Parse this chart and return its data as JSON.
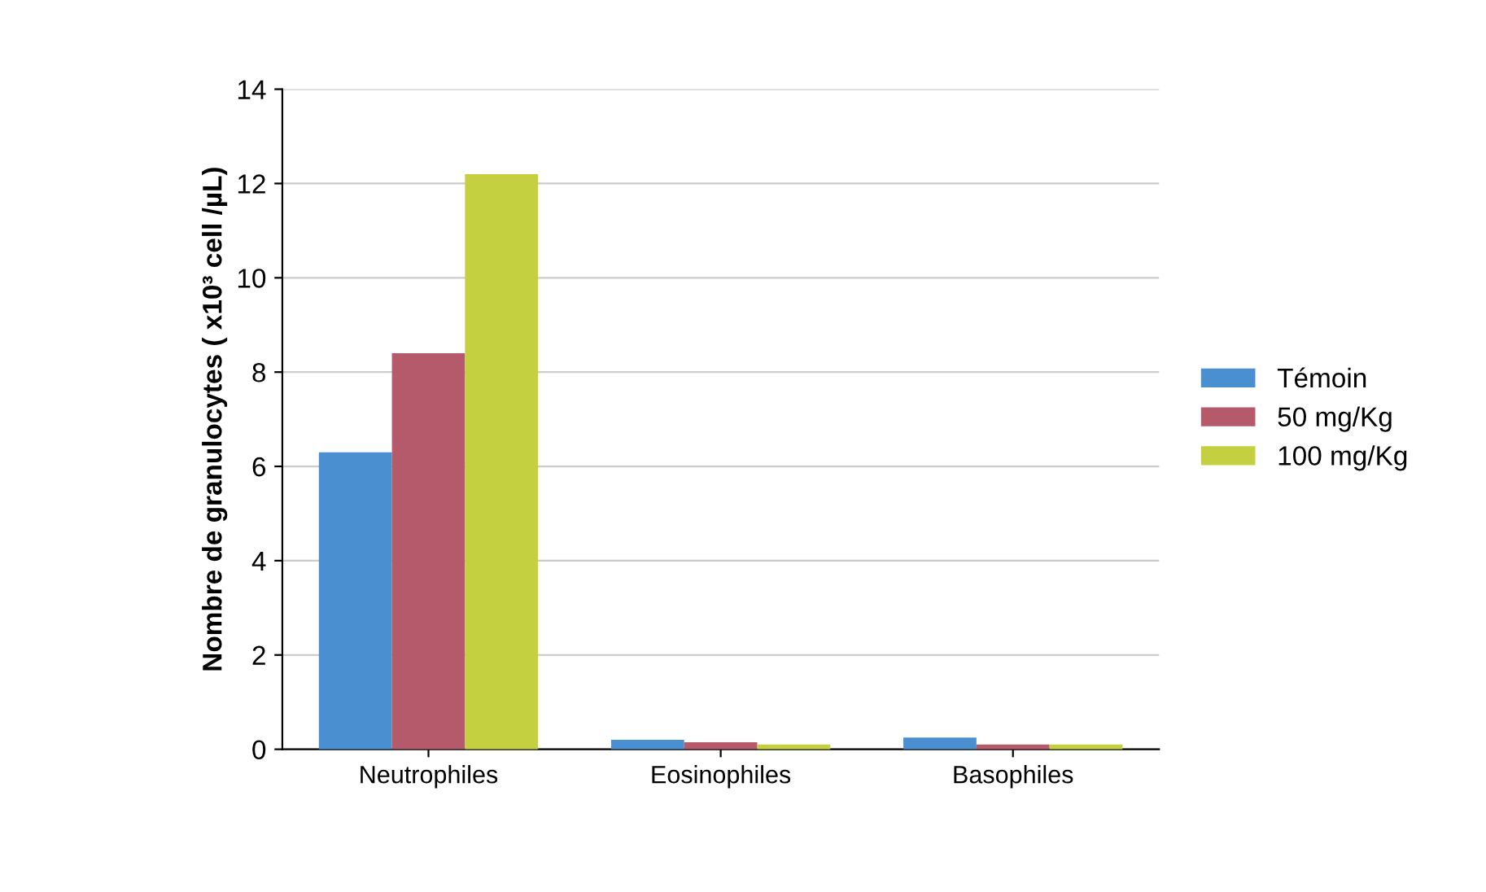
{
  "chart_data": {
    "type": "bar",
    "ylabel": "Nombre de granulocytes ( x10³ cell /µL)",
    "categories": [
      "Neutrophiles",
      "Eosinophiles",
      "Basophiles"
    ],
    "series": [
      {
        "name": "Témoin",
        "color": "#4a8fd0",
        "values": [
          6.3,
          0.2,
          0.25
        ]
      },
      {
        "name": "50 mg/Kg",
        "color": "#b45a6a",
        "values": [
          8.4,
          0.15,
          0.1
        ]
      },
      {
        "name": "100 mg/Kg",
        "color": "#c5d040",
        "values": [
          12.2,
          0.1,
          0.1
        ]
      }
    ],
    "ylim": [
      0,
      14
    ],
    "yticks": [
      0,
      2,
      4,
      6,
      8,
      10,
      12,
      14
    ],
    "grid": "y",
    "legend": "right"
  }
}
